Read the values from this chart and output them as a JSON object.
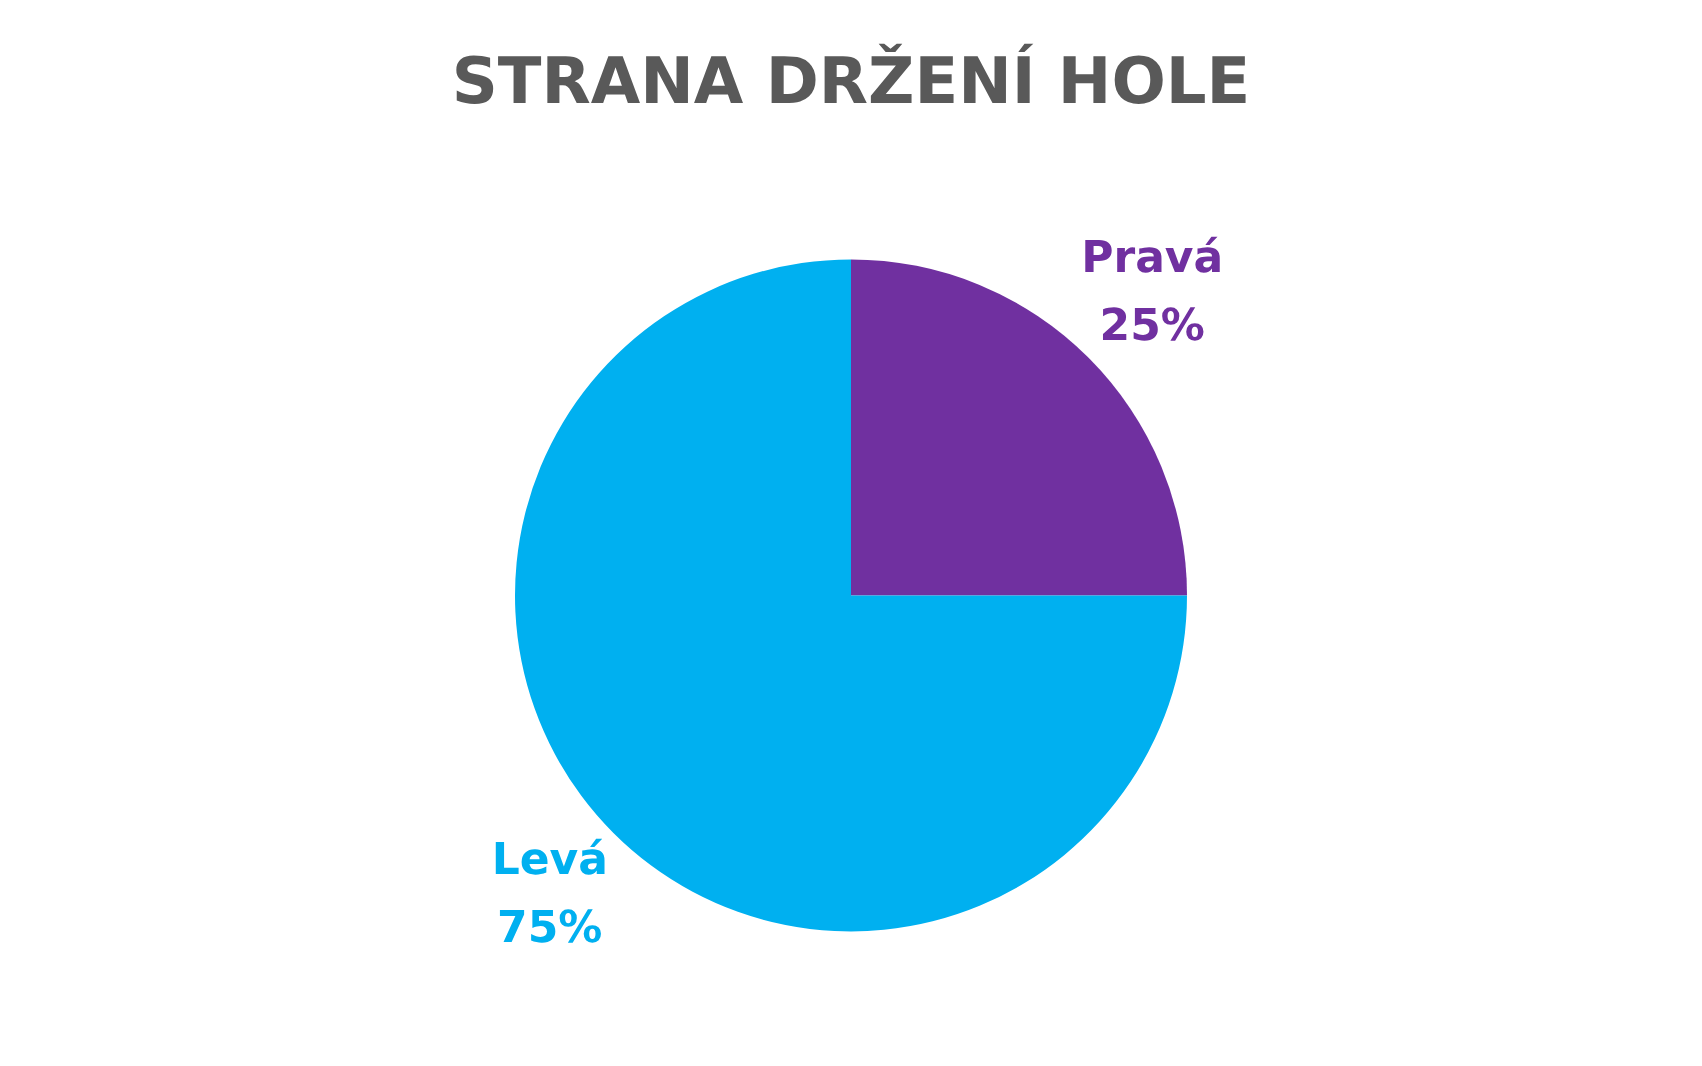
{
  "chart_data": {
    "type": "pie",
    "title": "STRANA DRŽENÍ HOLE",
    "categories": [
      "Pravá",
      "Levá"
    ],
    "values": [
      25,
      75
    ],
    "colors": [
      "#7030a0",
      "#00b0f0"
    ],
    "value_labels": [
      "25%",
      "75%"
    ],
    "legend": false
  }
}
